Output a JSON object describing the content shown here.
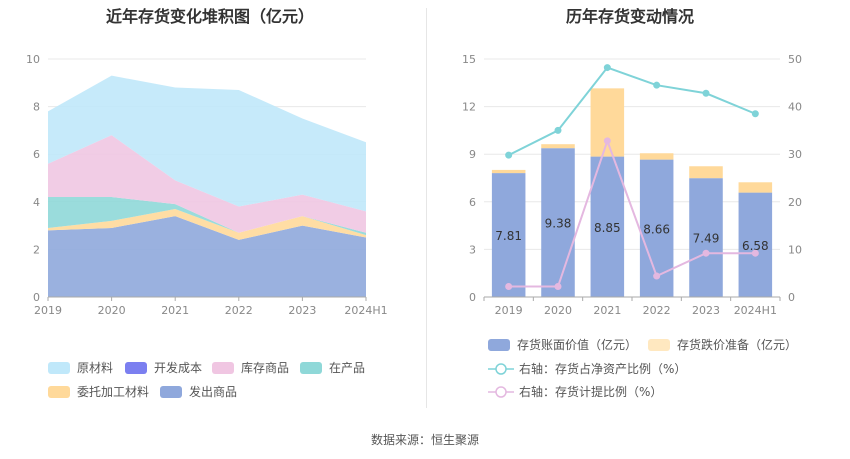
{
  "left_chart": {
    "title": "近年存货变化堆积图（亿元）",
    "chart_data": {
      "type": "area",
      "stacked": true,
      "categories": [
        "2019",
        "2020",
        "2021",
        "2022",
        "2023",
        "2024H1"
      ],
      "ylim": [
        0,
        10
      ],
      "yticks": [
        0,
        2,
        4,
        6,
        8,
        10
      ],
      "series": [
        {
          "name": "发出商品",
          "color": "#8fa8dc",
          "values": [
            2.8,
            2.9,
            3.4,
            2.4,
            3.0,
            2.5
          ]
        },
        {
          "name": "委托加工材料",
          "color": "#ffd99a",
          "values": [
            0.1,
            0.3,
            0.3,
            0.3,
            0.4,
            0.1
          ]
        },
        {
          "name": "在产品",
          "color": "#8fd8d8",
          "values": [
            1.3,
            1.0,
            0.2,
            0.0,
            0.0,
            0.1
          ]
        },
        {
          "name": "开发成本",
          "color": "#7b7ff0",
          "values": [
            0.0,
            0.0,
            0.0,
            0.0,
            0.0,
            0.0
          ]
        },
        {
          "name": "库存商品",
          "color": "#f0c6e2",
          "values": [
            1.4,
            2.6,
            1.0,
            1.1,
            0.9,
            0.9
          ]
        },
        {
          "name": "原材料",
          "color": "#c0e8fa",
          "values": [
            2.2,
            2.5,
            3.9,
            4.9,
            3.2,
            2.9
          ]
        }
      ],
      "legend": [
        "原材料",
        "开发成本",
        "库存商品",
        "在产品",
        "委托加工材料",
        "发出商品"
      ],
      "legend_position": "bottom",
      "grid": true
    }
  },
  "right_chart": {
    "title": "历年存货变动情况",
    "chart_data": {
      "type": "bar",
      "categories": [
        "2019",
        "2020",
        "2021",
        "2022",
        "2023",
        "2024H1"
      ],
      "ylim_left": [
        0,
        15
      ],
      "yticks_left": [
        0,
        3,
        6,
        9,
        12,
        15
      ],
      "ylim_right": [
        0,
        50
      ],
      "yticks_right": [
        0,
        10,
        20,
        30,
        40,
        50
      ],
      "series": [
        {
          "name": "存货账面价值（亿元）",
          "type": "bar",
          "stack": "s",
          "color": "#8fa8dc",
          "values": [
            7.81,
            9.38,
            8.85,
            8.66,
            7.49,
            6.58
          ],
          "labels": [
            "7.81",
            "9.38",
            "8.85",
            "8.66",
            "7.49",
            "6.58"
          ]
        },
        {
          "name": "存货跌价准备（亿元）",
          "type": "bar",
          "stack": "s",
          "color": "#ffd99a",
          "values": [
            0.2,
            0.25,
            4.3,
            0.4,
            0.75,
            0.65
          ]
        },
        {
          "name": "右轴：存货占净资产比例（%）",
          "type": "line",
          "axis": "right",
          "color": "#7fd3d8",
          "values": [
            29.8,
            35.0,
            48.2,
            44.5,
            42.8,
            38.5
          ]
        },
        {
          "name": "右轴：存货计提比例（%）",
          "type": "line",
          "axis": "right",
          "color": "#e4b8e0",
          "values": [
            2.2,
            2.2,
            32.8,
            4.4,
            9.2,
            9.2
          ]
        }
      ],
      "legend_position": "bottom",
      "grid": true
    }
  },
  "source_text": "数据来源：恒生聚源"
}
